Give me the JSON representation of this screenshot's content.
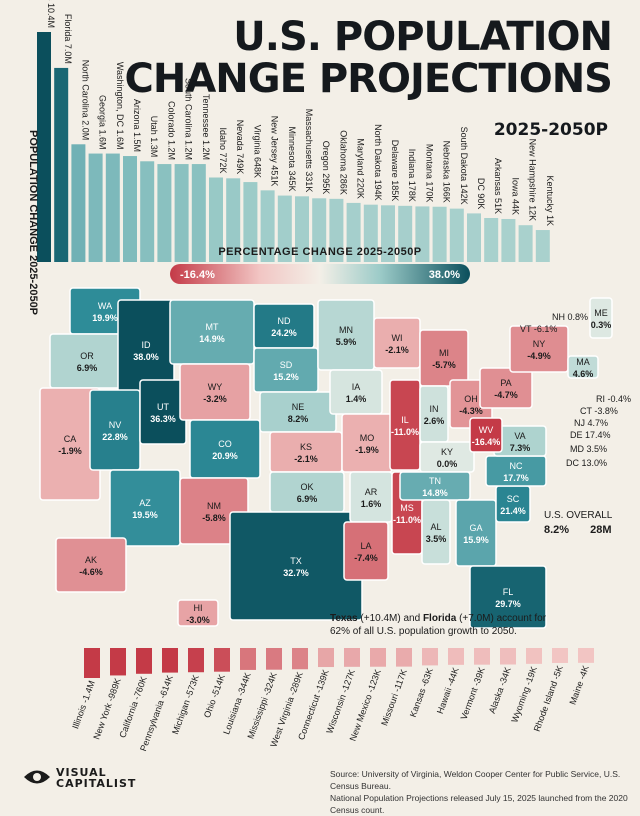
{
  "header": {
    "title_line1": "U.S. POPULATION",
    "title_line2": "CHANGE PROJECTIONS",
    "subtitle": "2025-2050P"
  },
  "colors": {
    "gain_dark": "#0b4f5c",
    "gain_mid": "#2d8b98",
    "gain_light": "#9ccbc8",
    "loss_light": "#f2c6c4",
    "loss_dark": "#c43a47",
    "background": "#f3efe7",
    "text": "#1b1b1b"
  },
  "chart_data": [
    {
      "type": "bar",
      "title": "POPULATION CHANGE 2025-2050P",
      "series": [
        {
          "categories": [
            "Texas",
            "Florida",
            "North Carolina",
            "Georgia",
            "Washington, DC",
            "Arizona",
            "Utah",
            "Colorado",
            "South Carolina",
            "Tennessee",
            "Idaho",
            "Nevada",
            "Virginia",
            "New Jersey",
            "Minnesota",
            "Massachusetts",
            "Oregon",
            "Oklahoma",
            "Maryland",
            "North Dakota",
            "Delaware",
            "Indiana",
            "Montana",
            "Nebraska",
            "South Dakota",
            "DC",
            "Arkansas",
            "Iowa",
            "New Hampshire",
            "Kentucky"
          ],
          "value_labels": [
            "10.4M",
            "7.0M",
            "2.0M",
            "1.6M",
            "1.6M",
            "1.5M",
            "1.3M",
            "1.2M",
            "1.2M",
            "1.2M",
            "772K",
            "749K",
            "648K",
            "451K",
            "345K",
            "331K",
            "295K",
            "286K",
            "220K",
            "194K",
            "185K",
            "178K",
            "170K",
            "166K",
            "142K",
            "90K",
            "51K",
            "44K",
            "12K",
            "1K"
          ],
          "values": [
            10.4,
            7.0,
            2.0,
            1.6,
            1.6,
            1.5,
            1.3,
            1.2,
            1.2,
            1.2,
            0.772,
            0.749,
            0.648,
            0.451,
            0.345,
            0.331,
            0.295,
            0.286,
            0.22,
            0.194,
            0.185,
            0.178,
            0.17,
            0.166,
            0.142,
            0.09,
            0.051,
            0.044,
            0.012,
            0.001
          ]
        }
      ]
    },
    {
      "type": "bar",
      "title": "",
      "series": [
        {
          "categories": [
            "Illinois",
            "New York",
            "California",
            "Pennsylvania",
            "Michigan",
            "Ohio",
            "Louisiana",
            "Mississippi",
            "West Virginia",
            "Connecticut",
            "Wisconsin",
            "New Mexico",
            "Missouri",
            "Kansas",
            "Hawaii",
            "Vermont",
            "Alaska",
            "Wyoming",
            "Rhode Island",
            "Maine"
          ],
          "value_labels": [
            "-1.4M",
            "-989K",
            "-760K",
            "-614K",
            "-573K",
            "-514K",
            "-344K",
            "-324K",
            "-289K",
            "-139K",
            "-127K",
            "-123K",
            "-117K",
            "-63K",
            "-44K",
            "-39K",
            "-34K",
            "-19K",
            "-5K",
            "-4K"
          ],
          "values": [
            -1.4,
            -0.989,
            -0.76,
            -0.614,
            -0.573,
            -0.514,
            -0.344,
            -0.324,
            -0.289,
            -0.139,
            -0.127,
            -0.123,
            -0.117,
            -0.063,
            -0.044,
            -0.039,
            -0.034,
            -0.019,
            -0.005,
            -0.004
          ]
        }
      ]
    },
    {
      "type": "heatmap",
      "title": "PERCENTAGE CHANGE 2025-2050P",
      "legend": {
        "min_label": "-16.4%",
        "max_label": "38.0%",
        "min": -16.4,
        "max": 38.0
      },
      "states": [
        {
          "id": "WA",
          "label": "WA",
          "value": 19.9,
          "text": "19.9%"
        },
        {
          "id": "OR",
          "label": "OR",
          "value": 6.9,
          "text": "6.9%"
        },
        {
          "id": "CA",
          "label": "CA",
          "value": -1.9,
          "text": "-1.9%"
        },
        {
          "id": "ID",
          "label": "ID",
          "value": 38.0,
          "text": "38.0%"
        },
        {
          "id": "NV",
          "label": "NV",
          "value": 22.8,
          "text": "22.8%"
        },
        {
          "id": "UT",
          "label": "UT",
          "value": 36.3,
          "text": "36.3%"
        },
        {
          "id": "AZ",
          "label": "AZ",
          "value": 19.5,
          "text": "19.5%"
        },
        {
          "id": "MT",
          "label": "MT",
          "value": 14.9,
          "text": "14.9%"
        },
        {
          "id": "WY",
          "label": "WY",
          "value": -3.2,
          "text": "-3.2%"
        },
        {
          "id": "CO",
          "label": "CO",
          "value": 20.9,
          "text": "20.9%"
        },
        {
          "id": "NM",
          "label": "NM",
          "value": -5.8,
          "text": "-5.8%"
        },
        {
          "id": "ND",
          "label": "ND",
          "value": 24.2,
          "text": "24.2%"
        },
        {
          "id": "SD",
          "label": "SD",
          "value": 15.2,
          "text": "15.2%"
        },
        {
          "id": "NE",
          "label": "NE",
          "value": 8.2,
          "text": "8.2%"
        },
        {
          "id": "KS",
          "label": "KS",
          "value": -2.1,
          "text": "-2.1%"
        },
        {
          "id": "OK",
          "label": "OK",
          "value": 6.9,
          "text": "6.9%"
        },
        {
          "id": "TX",
          "label": "TX",
          "value": 32.7,
          "text": "32.7%"
        },
        {
          "id": "MN",
          "label": "MN",
          "value": 5.9,
          "text": "5.9%"
        },
        {
          "id": "IA",
          "label": "IA",
          "value": 1.4,
          "text": "1.4%"
        },
        {
          "id": "MO",
          "label": "MO",
          "value": -1.9,
          "text": "-1.9%"
        },
        {
          "id": "AR",
          "label": "AR",
          "value": 1.6,
          "text": "1.6%"
        },
        {
          "id": "LA",
          "label": "LA",
          "value": -7.4,
          "text": "-7.4%"
        },
        {
          "id": "WI",
          "label": "WI",
          "value": -2.1,
          "text": "-2.1%"
        },
        {
          "id": "IL",
          "label": "IL",
          "value": -11.0,
          "text": "-11.0%"
        },
        {
          "id": "MS",
          "label": "MS",
          "value": -11.0,
          "text": "-11.0%"
        },
        {
          "id": "MI",
          "label": "MI",
          "value": -5.7,
          "text": "-5.7%"
        },
        {
          "id": "IN",
          "label": "IN",
          "value": 2.6,
          "text": "2.6%"
        },
        {
          "id": "KY",
          "label": "KY",
          "value": 0.0,
          "text": "0.0%"
        },
        {
          "id": "TN",
          "label": "TN",
          "value": 14.8,
          "text": "14.8%"
        },
        {
          "id": "AL",
          "label": "AL",
          "value": 3.5,
          "text": "3.5%"
        },
        {
          "id": "OH",
          "label": "OH",
          "value": -4.3,
          "text": "-4.3%"
        },
        {
          "id": "GA",
          "label": "GA",
          "value": 15.9,
          "text": "15.9%"
        },
        {
          "id": "FL",
          "label": "FL",
          "value": 29.7,
          "text": "29.7%"
        },
        {
          "id": "SC",
          "label": "SC",
          "value": 21.4,
          "text": "21.4%"
        },
        {
          "id": "NC",
          "label": "NC",
          "value": 17.7,
          "text": "17.7%"
        },
        {
          "id": "VA",
          "label": "VA",
          "value": 7.3,
          "text": "7.3%"
        },
        {
          "id": "WV",
          "label": "WV",
          "value": -16.4,
          "text": "-16.4%"
        },
        {
          "id": "PA",
          "label": "PA",
          "value": -4.7,
          "text": "-4.7%"
        },
        {
          "id": "NY",
          "label": "NY",
          "value": -4.9,
          "text": "-4.9%"
        },
        {
          "id": "ME",
          "label": "ME",
          "value": 0.3,
          "text": "0.3%"
        },
        {
          "id": "MA",
          "label": "MA",
          "value": 4.6,
          "text": "4.6%"
        },
        {
          "id": "AK",
          "label": "AK",
          "value": -4.6,
          "text": "-4.6%"
        },
        {
          "id": "HI",
          "label": "HI",
          "value": -3.0,
          "text": "-3.0%"
        }
      ],
      "side_labels": [
        {
          "id": "NH",
          "text": "NH",
          "value_text": "0.8%"
        },
        {
          "id": "VT",
          "text": "VT",
          "value_text": "-6.1%"
        },
        {
          "id": "RI",
          "text": "RI",
          "value_text": "-0.4%"
        },
        {
          "id": "CT",
          "text": "CT",
          "value_text": "-3.8%"
        },
        {
          "id": "NJ",
          "text": "NJ",
          "value_text": "4.7%"
        },
        {
          "id": "DE",
          "text": "DE",
          "value_text": "17.4%"
        },
        {
          "id": "MD",
          "text": "MD",
          "value_text": "3.5%"
        },
        {
          "id": "DC",
          "text": "DC",
          "value_text": "13.0%"
        }
      ]
    }
  ],
  "overall": {
    "label": "U.S. OVERALL",
    "pct": "8.2%",
    "abs": "28M"
  },
  "note": {
    "tx": "Texas",
    "tx_val": "(+10.4M)",
    "and": "and",
    "fl": "Florida",
    "fl_val": "(+7.0M)",
    "rest": "account for 62% of all U.S. population growth to 2050."
  },
  "source": {
    "line1": "Source: University of Virginia, Weldon Cooper Center for Public Service, U.S. Census Bureau.",
    "line2": "National Population Projections released July 15, 2025 launched from the 2020 Census count."
  },
  "brand": {
    "line1": "VISUAL",
    "line2": "CAPITALIST"
  }
}
